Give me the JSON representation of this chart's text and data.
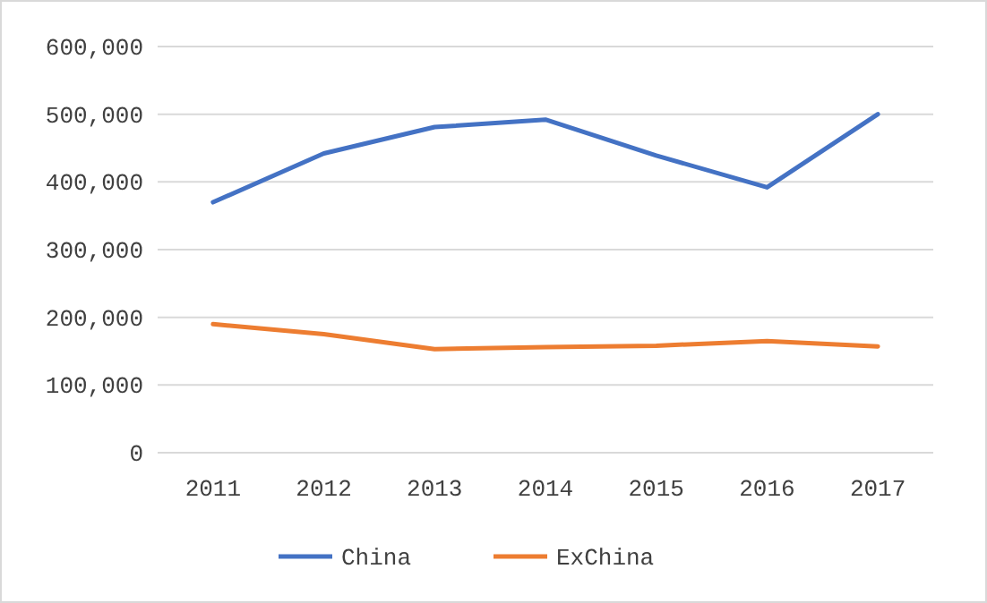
{
  "chart_data": {
    "type": "line",
    "categories": [
      "2011",
      "2012",
      "2013",
      "2014",
      "2015",
      "2016",
      "2017"
    ],
    "series": [
      {
        "name": "China",
        "color": "#4472c4",
        "values": [
          370000,
          442000,
          481000,
          492000,
          439000,
          392000,
          500000
        ]
      },
      {
        "name": "ExChina",
        "color": "#ed7d31",
        "values": [
          190000,
          175000,
          153000,
          156000,
          158000,
          165000,
          157000
        ]
      }
    ],
    "ylim": [
      0,
      600000
    ],
    "yticks": [
      0,
      {
        "value": 100000,
        "label": "100,000"
      },
      {
        "value": 200000,
        "label": "200,000"
      },
      {
        "value": 300000,
        "label": "300,000"
      },
      {
        "value": 400000,
        "label": "400,000"
      },
      {
        "value": 500000,
        "label": "500,000"
      },
      {
        "value": 600000,
        "label": "600,000"
      }
    ],
    "grid": "y",
    "legend": "bottom",
    "marker": "none",
    "line_style": "solid"
  }
}
